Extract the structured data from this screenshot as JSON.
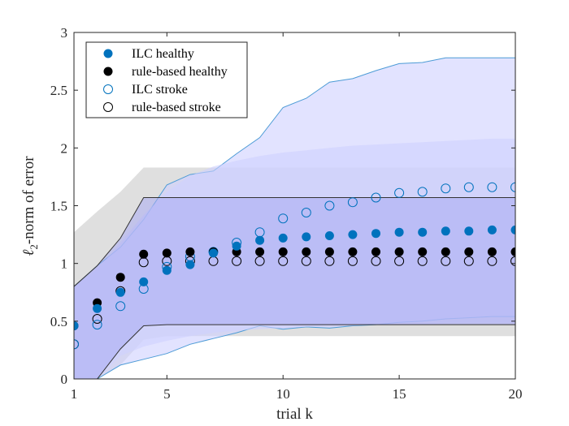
{
  "chart_data": {
    "type": "scatter",
    "title": "",
    "xlabel": "trial k",
    "ylabel_main": "-norm of error",
    "ylabel_symbol": "ℓ",
    "ylabel_subscript": "2",
    "xlim": [
      1,
      20
    ],
    "ylim": [
      0,
      3
    ],
    "xticks": [
      1,
      5,
      10,
      15,
      20
    ],
    "yticks": [
      0,
      0.5,
      1,
      1.5,
      2,
      2.5,
      3
    ],
    "ytick_labels": [
      "0",
      "0.5",
      "1",
      "1.5",
      "2",
      "2.5",
      "3"
    ],
    "legend_position": "top-left",
    "colors": {
      "ilc": "#0072BD",
      "rule": "#000000",
      "grey_band": "#d9d9d9",
      "blue_band_light": "#cfd1ff",
      "blue_band_dark": "#a9abf2",
      "ilc_band_edge": "#4d9bd6",
      "rule_band_edge": "#333333"
    },
    "x": [
      1,
      2,
      3,
      4,
      5,
      6,
      7,
      8,
      9,
      10,
      11,
      12,
      13,
      14,
      15,
      16,
      17,
      18,
      19,
      20
    ],
    "series": [
      {
        "name": "ILC healthy",
        "marker": "filled",
        "color": "#0072BD",
        "values": [
          0.46,
          0.61,
          0.75,
          0.84,
          0.94,
          0.99,
          1.09,
          1.15,
          1.2,
          1.22,
          1.23,
          1.24,
          1.25,
          1.26,
          1.27,
          1.27,
          1.28,
          1.28,
          1.29,
          1.29
        ]
      },
      {
        "name": "rule-based healthy",
        "marker": "filled",
        "color": "#000000",
        "values": [
          0.46,
          0.66,
          0.88,
          1.08,
          1.09,
          1.1,
          1.1,
          1.1,
          1.1,
          1.1,
          1.1,
          1.1,
          1.1,
          1.1,
          1.1,
          1.1,
          1.1,
          1.1,
          1.1,
          1.1
        ]
      },
      {
        "name": "ILC stroke",
        "marker": "open",
        "color": "#0072BD",
        "values": [
          0.3,
          0.47,
          0.63,
          0.78,
          0.97,
          1.06,
          1.1,
          1.18,
          1.27,
          1.39,
          1.44,
          1.5,
          1.53,
          1.57,
          1.61,
          1.62,
          1.65,
          1.66,
          1.66,
          1.66
        ]
      },
      {
        "name": "rule-based stroke",
        "marker": "open",
        "color": "#000000",
        "values": [
          0.3,
          0.52,
          0.76,
          1.01,
          1.02,
          1.02,
          1.02,
          1.02,
          1.02,
          1.02,
          1.02,
          1.02,
          1.02,
          1.02,
          1.02,
          1.02,
          1.02,
          1.02,
          1.02,
          1.02
        ]
      }
    ],
    "bands": [
      {
        "name": "rule-based stroke band",
        "fill": "grey",
        "upper": [
          1.27,
          1.45,
          1.62,
          1.83,
          1.83,
          1.83,
          1.83,
          1.83,
          1.83,
          1.83,
          1.83,
          1.83,
          1.83,
          1.83,
          1.83,
          1.83,
          1.83,
          1.83,
          1.83,
          1.83
        ],
        "lower": [
          0.0,
          0.0,
          0.12,
          0.34,
          0.37,
          0.37,
          0.37,
          0.37,
          0.37,
          0.37,
          0.37,
          0.37,
          0.37,
          0.37,
          0.37,
          0.37,
          0.37,
          0.37,
          0.37,
          0.37
        ]
      },
      {
        "name": "ILC stroke band",
        "fill": "blue_light",
        "edge": "ilc_band_edge",
        "upper": [
          0.8,
          0.98,
          1.14,
          1.38,
          1.68,
          1.77,
          1.8,
          1.95,
          2.09,
          2.35,
          2.43,
          2.57,
          2.6,
          2.67,
          2.73,
          2.74,
          2.78,
          2.78,
          2.78,
          2.78
        ],
        "lower": [
          0.0,
          0.0,
          0.12,
          0.17,
          0.22,
          0.3,
          0.35,
          0.4,
          0.46,
          0.43,
          0.45,
          0.44,
          0.46,
          0.47,
          0.49,
          0.5,
          0.52,
          0.53,
          0.54,
          0.54
        ]
      },
      {
        "name": "ILC healthy band",
        "fill": "blue_light",
        "upper": [
          0.8,
          0.95,
          1.18,
          1.42,
          1.62,
          1.76,
          1.84,
          1.89,
          1.93,
          1.96,
          1.98,
          2.0,
          2.02,
          2.03,
          2.04,
          2.05,
          2.06,
          2.07,
          2.08,
          2.08
        ],
        "lower": [
          0.0,
          0.0,
          0.2,
          0.28,
          0.33,
          0.37,
          0.4,
          0.42,
          0.43,
          0.44,
          0.45,
          0.46,
          0.46,
          0.47,
          0.47,
          0.47,
          0.48,
          0.48,
          0.48,
          0.48
        ]
      },
      {
        "name": "rule-based healthy band",
        "fill": "blue_dark",
        "edge": "rule_band_edge",
        "upper": [
          0.8,
          0.98,
          1.22,
          1.57,
          1.57,
          1.57,
          1.57,
          1.57,
          1.57,
          1.57,
          1.57,
          1.57,
          1.57,
          1.57,
          1.57,
          1.57,
          1.57,
          1.57,
          1.57,
          1.57
        ],
        "lower": [
          0.0,
          0.0,
          0.26,
          0.46,
          0.47,
          0.47,
          0.47,
          0.47,
          0.47,
          0.47,
          0.47,
          0.47,
          0.47,
          0.47,
          0.47,
          0.47,
          0.47,
          0.47,
          0.47,
          0.47
        ]
      }
    ]
  }
}
